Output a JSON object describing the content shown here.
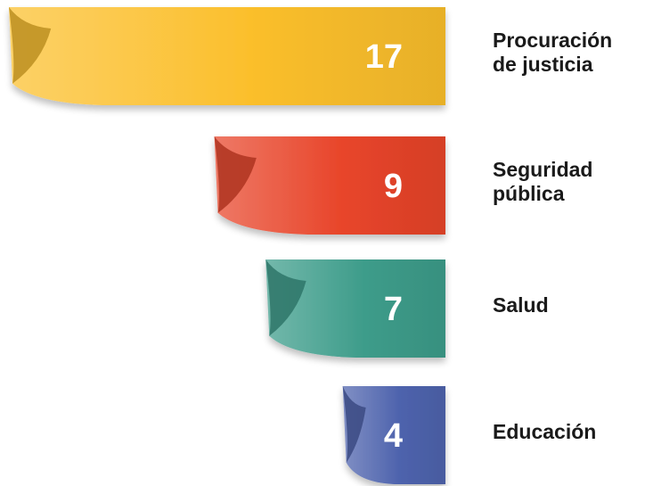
{
  "chart_data": {
    "type": "bar",
    "orientation": "horizontal",
    "categories": [
      "Procuración de justicia",
      "Seguridad pública",
      "Salud",
      "Educación"
    ],
    "values": [
      17,
      9,
      7,
      4
    ],
    "category_lines": [
      [
        "Procuración",
        "de justicia"
      ],
      [
        "Seguridad",
        "pública"
      ],
      [
        "Salud"
      ],
      [
        "Educación"
      ]
    ],
    "colors": [
      "#fbbf2c",
      "#e8452a",
      "#3d9c8a",
      "#4e63ad"
    ],
    "grid": false,
    "legend": "none"
  }
}
